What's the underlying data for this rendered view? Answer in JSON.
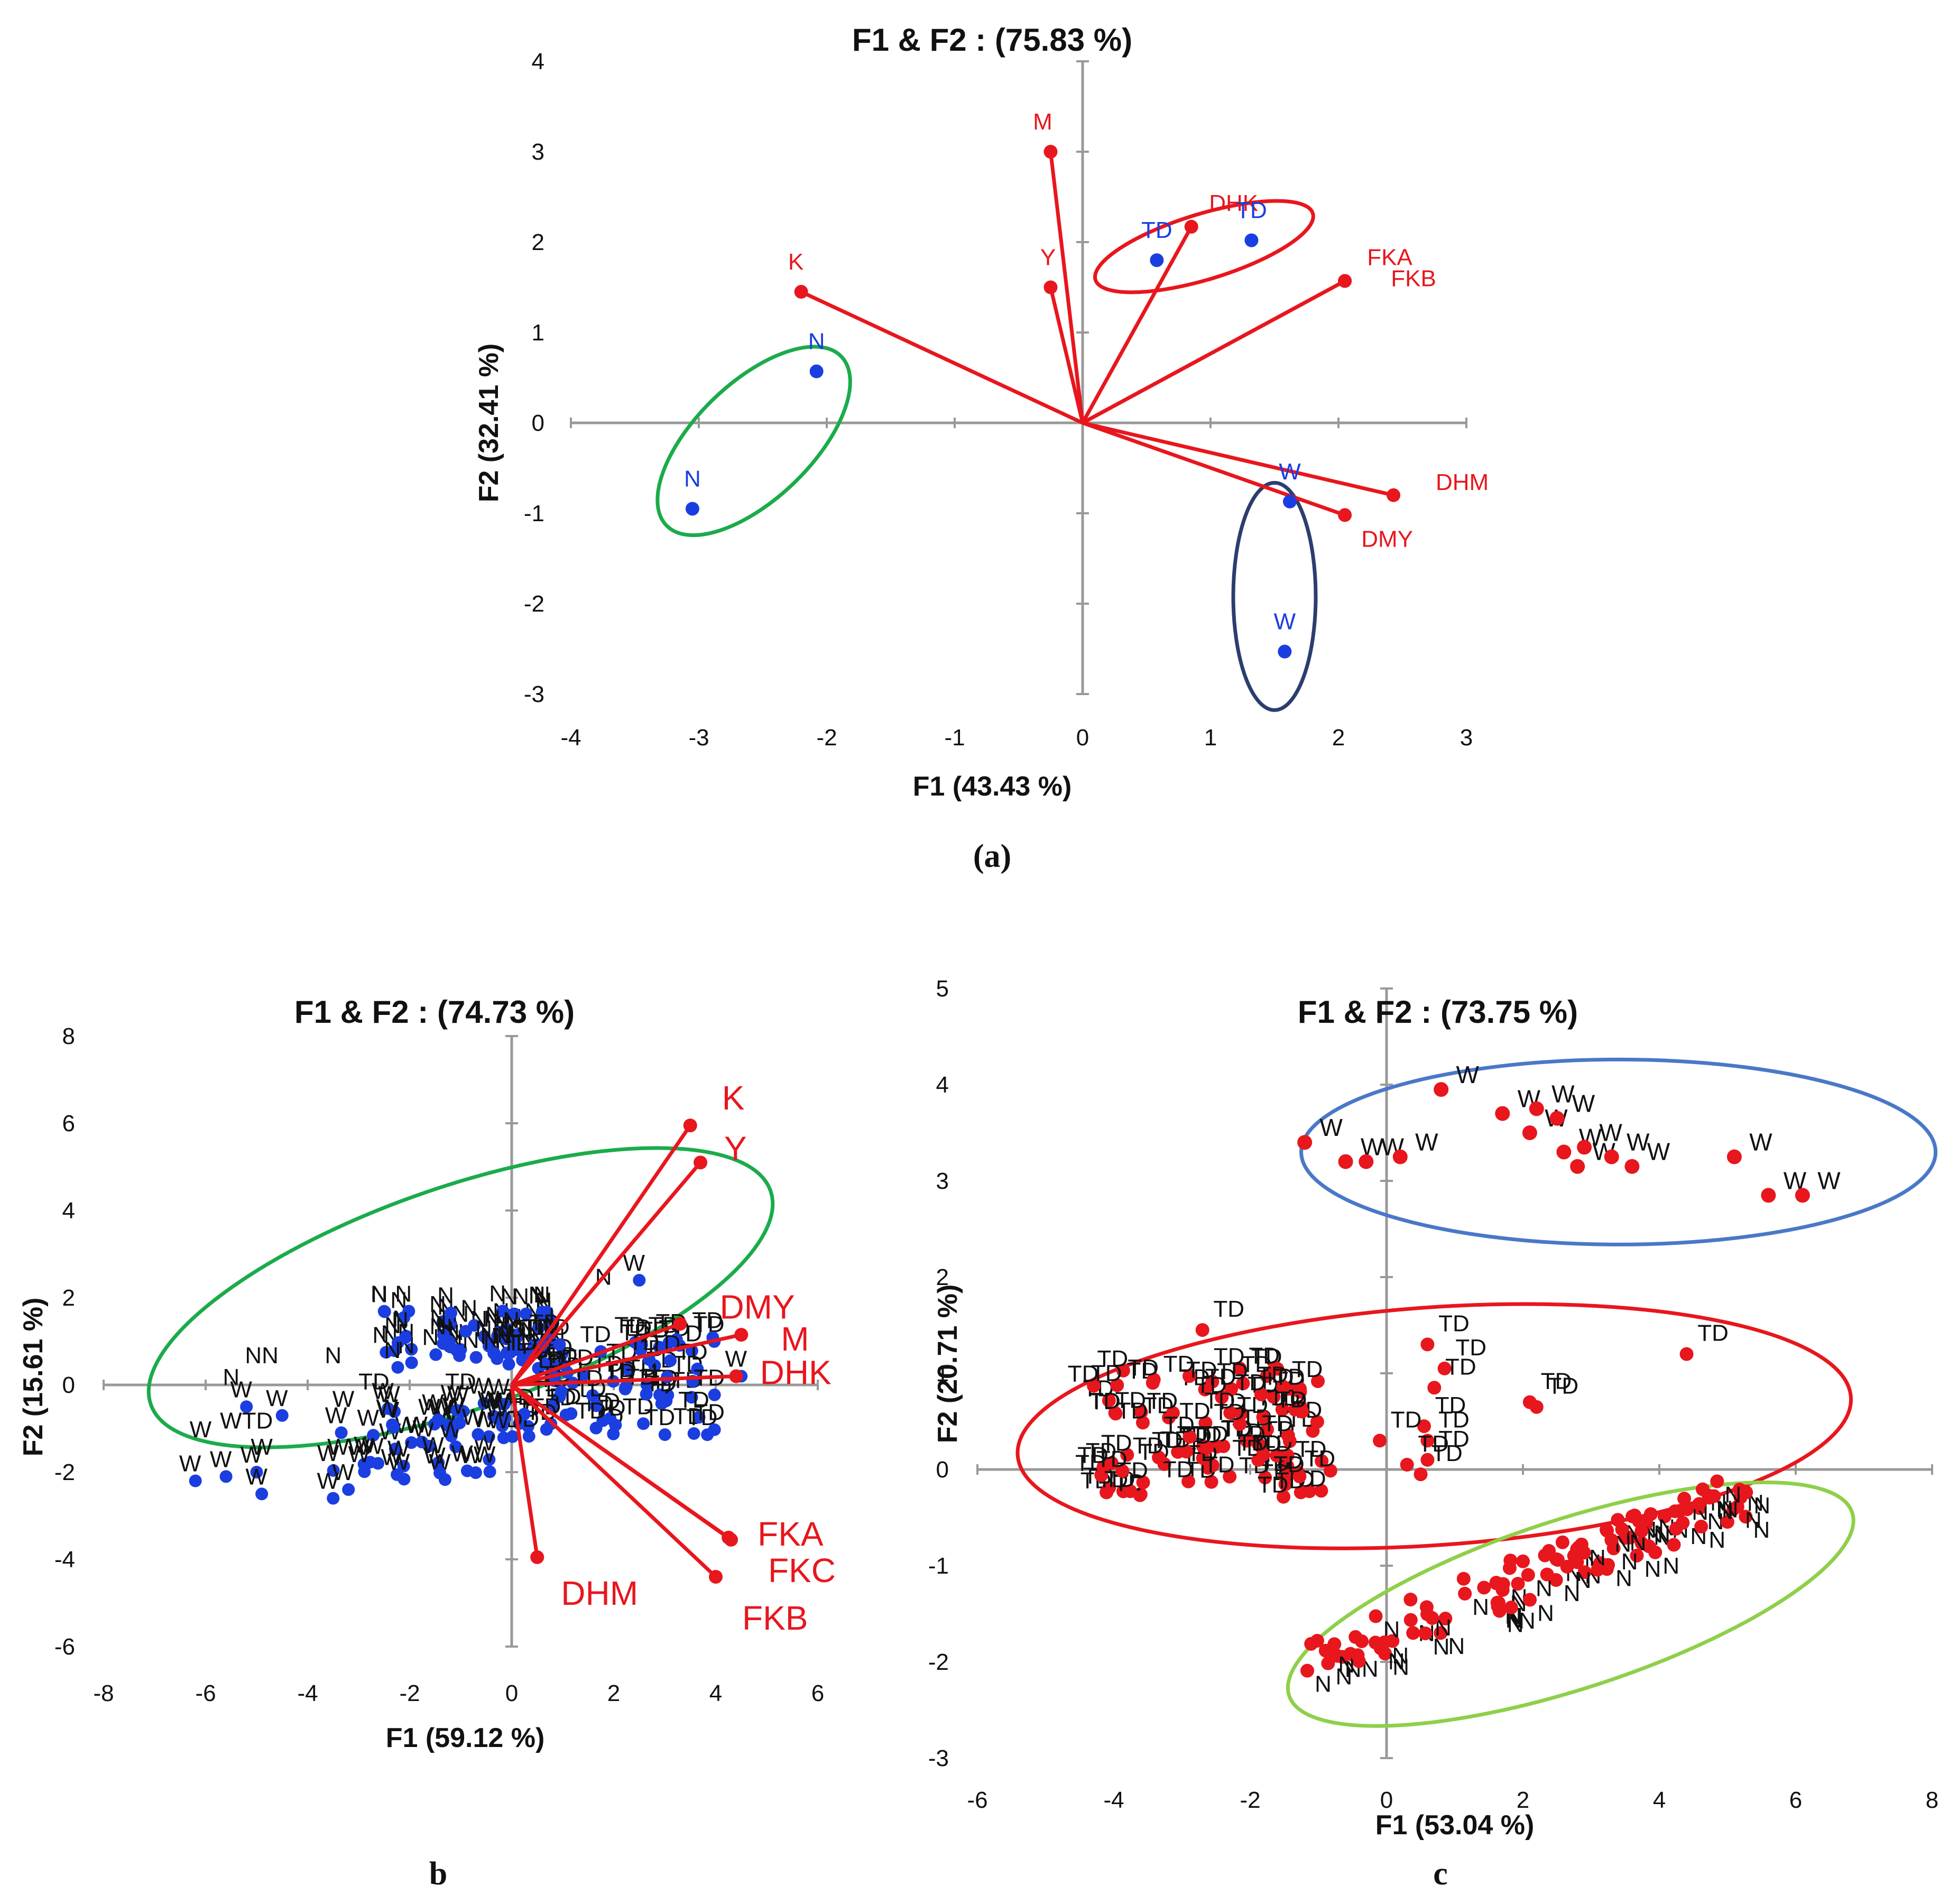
{
  "colors": {
    "variable": "#e8161d",
    "observation": "#1a3ee0",
    "axis": "#999999",
    "text_black": "#111111",
    "green": "#1bab4b",
    "navy": "#2b3e6e",
    "blue_ellipse": "#4a78c8",
    "lightgreen": "#8fcf4a"
  },
  "chart_data": [
    {
      "panel": "(a)",
      "type": "scatter",
      "title": "F1 & F2 :    (75.83 %)",
      "xlabel": "F1 (43.43 %)",
      "ylabel": "F2 (32.41 %)",
      "xlim": [
        -4,
        3
      ],
      "ylim": [
        -3,
        4
      ],
      "xticks": [
        -4,
        -3,
        -2,
        -1,
        0,
        1,
        2,
        3
      ],
      "yticks": [
        -3,
        -2,
        -1,
        0,
        1,
        2,
        3,
        4
      ],
      "variables": [
        {
          "label": "M",
          "x": -0.25,
          "y": 3.0
        },
        {
          "label": "Y",
          "x": -0.25,
          "y": 1.5
        },
        {
          "label": "K",
          "x": -2.2,
          "y": 1.45
        },
        {
          "label": "DHK",
          "x": 0.85,
          "y": 2.17
        },
        {
          "label": "FKA",
          "x": 2.05,
          "y": 1.57
        },
        {
          "label": "FKB",
          "x": 2.05,
          "y": 1.57
        },
        {
          "label": "DHM",
          "x": 2.43,
          "y": -0.8
        },
        {
          "label": "DMY",
          "x": 2.05,
          "y": -1.02
        }
      ],
      "observations": [
        {
          "label": "TD",
          "x": 0.58,
          "y": 1.8
        },
        {
          "label": "TD",
          "x": 1.32,
          "y": 2.02
        },
        {
          "label": "N",
          "x": -2.08,
          "y": 0.57
        },
        {
          "label": "N",
          "x": -3.05,
          "y": -0.95
        },
        {
          "label": "W",
          "x": 1.62,
          "y": -0.87
        },
        {
          "label": "W",
          "x": 1.58,
          "y": -2.53
        }
      ],
      "groups": [
        "TD",
        "N",
        "W"
      ]
    },
    {
      "panel": "b",
      "type": "scatter",
      "title": "F1 & F2 :    (74.73 %)",
      "xlabel": "F1 (59.12 %)",
      "ylabel": "F2 (15.61 %)",
      "xlim": [
        -8,
        6
      ],
      "ylim": [
        -6,
        8
      ],
      "xticks": [
        -8,
        -6,
        -4,
        -2,
        0,
        2,
        4,
        6
      ],
      "yticks": [
        -6,
        -4,
        -2,
        0,
        2,
        4,
        6,
        8
      ],
      "variables": [
        {
          "label": "K",
          "x": 3.5,
          "y": 5.95
        },
        {
          "label": "Y",
          "x": 3.7,
          "y": 5.1
        },
        {
          "label": "DMY",
          "x": 3.3,
          "y": 1.4
        },
        {
          "label": "M",
          "x": 4.5,
          "y": 1.15
        },
        {
          "label": "DHK",
          "x": 4.4,
          "y": 0.2
        },
        {
          "label": "FKA",
          "x": 4.25,
          "y": -3.5
        },
        {
          "label": "FKC",
          "x": 4.3,
          "y": -3.55
        },
        {
          "label": "FKB",
          "x": 4.0,
          "y": -4.4
        },
        {
          "label": "DHM",
          "x": 0.5,
          "y": -3.95
        }
      ],
      "observations_note": "About 200 individual observations labeled N, TD and W (labels overlap densely).",
      "groups": [
        "N",
        "TD",
        "W"
      ],
      "annotations": [
        "N",
        "NN",
        "N",
        "W",
        "WTD",
        "W",
        "W",
        "TD",
        "TD",
        "W",
        "N"
      ]
    },
    {
      "panel": "c",
      "type": "scatter",
      "title": "F1 & F2 :    (73.75 %)",
      "xlabel": "F1 (53.04 %)",
      "ylabel": "F2 (20.71 %)",
      "xlim": [
        -6,
        8
      ],
      "ylim": [
        -3,
        5
      ],
      "xticks": [
        -6,
        -4,
        -2,
        0,
        2,
        4,
        6,
        8
      ],
      "yticks": [
        -3,
        -2,
        -1,
        0,
        1,
        2,
        3,
        4,
        5
      ],
      "observations_note": "About 200 observations in three clusters: W (top), TD (middle), N (bottom).",
      "groups": [
        "W",
        "TD",
        "N"
      ],
      "annotations": [
        "W",
        "W",
        "W",
        "W",
        "W",
        "W",
        "WW",
        "WWW",
        "W",
        "W",
        "W",
        "W",
        "TD",
        "TD",
        "TD",
        "TD",
        "TD",
        "TD",
        "TD",
        "TD",
        "TD",
        "N",
        "N",
        "N",
        "N",
        "N",
        "N"
      ]
    }
  ]
}
